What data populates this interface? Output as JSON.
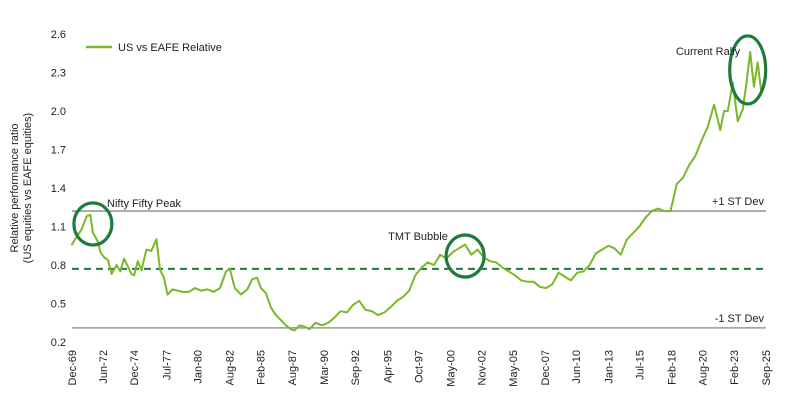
{
  "chart_data": {
    "type": "line",
    "title": "",
    "ylabel_lines": [
      "Relative performance ratio",
      "(US equities vs EAFE equities)"
    ],
    "xlabel": "",
    "ylim": [
      0.2,
      2.6
    ],
    "yticks": [
      "0.2",
      "0.5",
      "0.8",
      "1.1",
      "1.4",
      "1.7",
      "2.0",
      "2.3",
      "2.6"
    ],
    "ytick_values": [
      0.2,
      0.5,
      0.8,
      1.1,
      1.4,
      1.7,
      2.0,
      2.3,
      2.6
    ],
    "xlim": [
      1969.92,
      2025.67
    ],
    "xticks": [
      "Dec-69",
      "Jun-72",
      "Dec-74",
      "Jul-77",
      "Jan-80",
      "Aug-82",
      "Feb-85",
      "Aug-87",
      "Mar-90",
      "Sep-92",
      "Apr-95",
      "Oct-97",
      "May-00",
      "Nov-02",
      "May-05",
      "Dec-07",
      "Jun-10",
      "Jan-13",
      "Jul-15",
      "Feb-18",
      "Aug-20",
      "Feb-23",
      "Sep-25"
    ],
    "xtick_values": [
      1969.92,
      1972.42,
      1974.92,
      1977.5,
      1980.0,
      1982.58,
      1985.08,
      1987.58,
      1990.17,
      1992.67,
      1995.25,
      1997.75,
      2000.33,
      2002.83,
      2005.33,
      2007.92,
      2010.42,
      2013.0,
      2015.5,
      2018.08,
      2020.58,
      2023.08,
      2025.67
    ],
    "grid": false,
    "legend_position": "top-left",
    "series": [
      {
        "name": "US vs EAFE Relative",
        "color": "#7ab82a",
        "x": [
          1969.92,
          1970.3,
          1970.7,
          1971.1,
          1971.4,
          1971.6,
          1971.8,
          1972.0,
          1972.2,
          1972.5,
          1972.8,
          1973.1,
          1973.5,
          1973.8,
          1974.1,
          1974.4,
          1974.7,
          1974.92,
          1975.2,
          1975.5,
          1975.9,
          1976.3,
          1976.7,
          1977.0,
          1977.3,
          1977.6,
          1978.0,
          1978.4,
          1978.8,
          1979.3,
          1979.8,
          1980.3,
          1980.8,
          1981.3,
          1981.8,
          1982.3,
          1982.6,
          1983.0,
          1983.5,
          1984.0,
          1984.4,
          1984.8,
          1985.1,
          1985.5,
          1985.9,
          1986.3,
          1986.7,
          1987.1,
          1987.5,
          1987.8,
          1988.2,
          1988.6,
          1989.0,
          1989.5,
          1990.0,
          1990.5,
          1991.0,
          1991.5,
          1992.0,
          1992.5,
          1993.0,
          1993.5,
          1994.0,
          1994.5,
          1995.0,
          1995.5,
          1996.0,
          1996.5,
          1997.0,
          1997.5,
          1998.0,
          1998.5,
          1999.0,
          1999.5,
          2000.0,
          2000.5,
          2001.0,
          2001.5,
          2002.0,
          2002.5,
          2003.0,
          2003.5,
          2004.0,
          2004.5,
          2005.0,
          2005.5,
          2006.0,
          2006.5,
          2007.0,
          2007.5,
          2008.0,
          2008.5,
          2009.0,
          2009.5,
          2010.0,
          2010.5,
          2011.0,
          2011.5,
          2012.0,
          2012.5,
          2013.0,
          2013.5,
          2014.0,
          2014.5,
          2015.0,
          2015.5,
          2016.0,
          2016.5,
          2017.0,
          2017.5,
          2018.0,
          2018.5,
          2019.0,
          2019.5,
          2020.0,
          2020.5,
          2021.0,
          2021.5,
          2022.0,
          2022.3,
          2022.6,
          2023.0,
          2023.4,
          2023.8,
          2024.1,
          2024.4,
          2024.7,
          2025.0,
          2025.3,
          2025.67
        ],
        "values": [
          0.96,
          1.02,
          1.08,
          1.18,
          1.19,
          1.05,
          1.02,
          0.98,
          0.9,
          0.86,
          0.84,
          0.73,
          0.8,
          0.75,
          0.85,
          0.79,
          0.73,
          0.72,
          0.83,
          0.76,
          0.92,
          0.91,
          1.0,
          0.76,
          0.7,
          0.57,
          0.61,
          0.6,
          0.59,
          0.59,
          0.62,
          0.6,
          0.61,
          0.59,
          0.62,
          0.75,
          0.77,
          0.62,
          0.57,
          0.61,
          0.69,
          0.7,
          0.62,
          0.58,
          0.47,
          0.41,
          0.37,
          0.33,
          0.3,
          0.29,
          0.33,
          0.32,
          0.3,
          0.35,
          0.33,
          0.35,
          0.39,
          0.44,
          0.43,
          0.49,
          0.52,
          0.45,
          0.44,
          0.41,
          0.43,
          0.47,
          0.52,
          0.55,
          0.6,
          0.72,
          0.78,
          0.82,
          0.8,
          0.88,
          0.85,
          0.9,
          0.93,
          0.96,
          0.88,
          0.92,
          0.86,
          0.83,
          0.82,
          0.78,
          0.75,
          0.72,
          0.68,
          0.67,
          0.67,
          0.63,
          0.62,
          0.65,
          0.74,
          0.71,
          0.68,
          0.74,
          0.75,
          0.8,
          0.89,
          0.92,
          0.95,
          0.93,
          0.88,
          1.0,
          1.05,
          1.1,
          1.17,
          1.22,
          1.24,
          1.22,
          1.22,
          1.43,
          1.48,
          1.58,
          1.65,
          1.77,
          1.88,
          2.05,
          1.85,
          2.0,
          2.0,
          2.22,
          1.92,
          2.01,
          2.22,
          2.46,
          2.19,
          2.38,
          2.14,
          2.3
        ]
      }
    ],
    "reference_lines": [
      {
        "label": "+1 ST Dev",
        "value": 1.22,
        "style": "solid",
        "color": "#9a9a9a"
      },
      {
        "label": "",
        "value": 0.77,
        "style": "dashed",
        "color": "#1f7a3c"
      },
      {
        "label": "-1 ST Dev",
        "value": 0.31,
        "style": "solid",
        "color": "#9a9a9a"
      }
    ],
    "annotations": [
      {
        "label": "Nifty Fifty Peak",
        "x": 1971.6,
        "y": 1.12
      },
      {
        "label": "TMT Bubble",
        "x": 2001.5,
        "y": 0.87
      },
      {
        "label": "Current Rally",
        "x": 2024.2,
        "y": 2.32
      }
    ],
    "highlight_color": "#1f7a3c"
  }
}
